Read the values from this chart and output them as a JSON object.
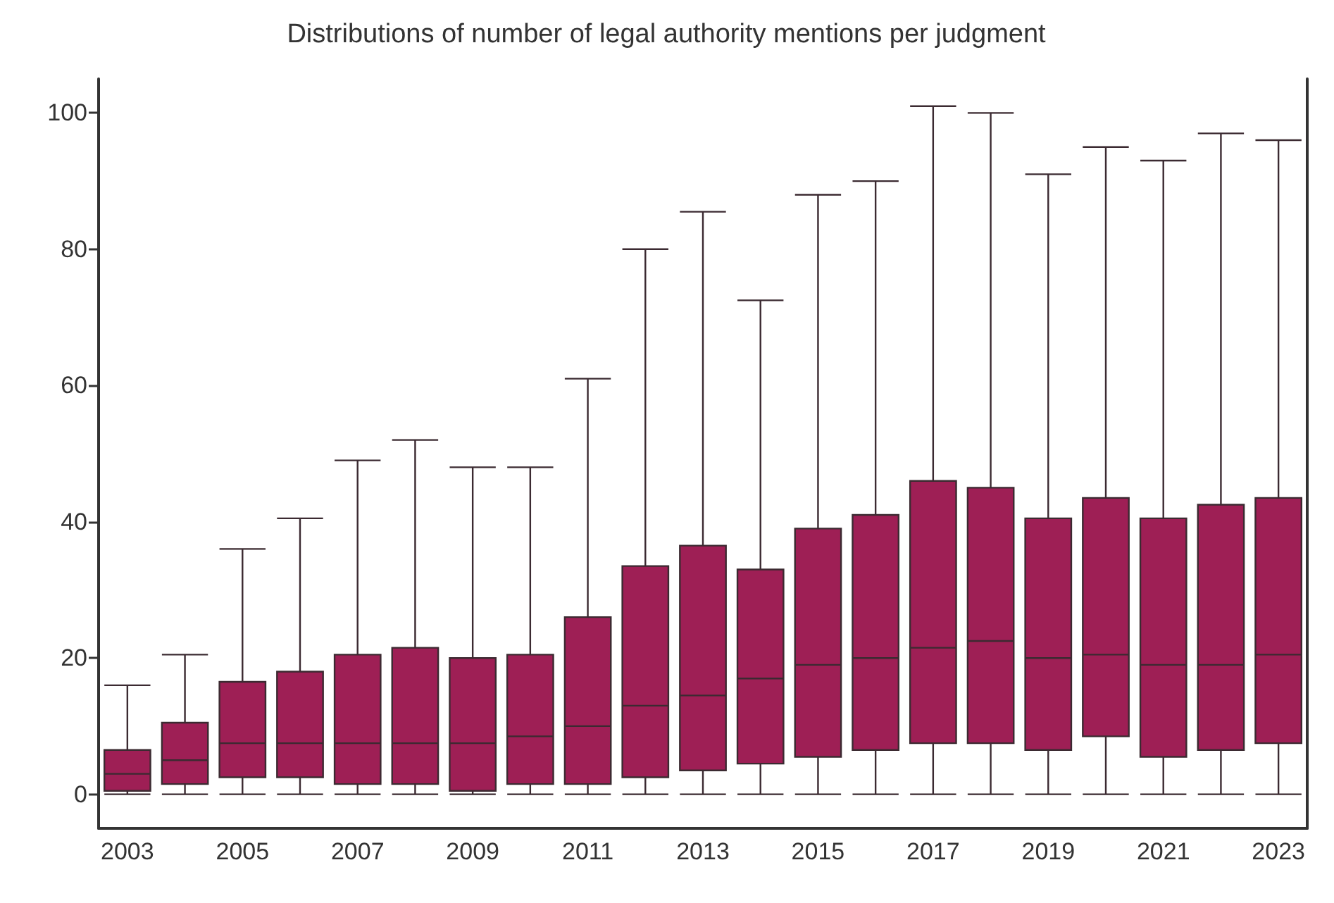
{
  "chart_data": {
    "type": "box",
    "title": "Distributions of number of legal authority mentions per judgment",
    "categories": [
      "2003",
      null,
      "2005",
      null,
      "2007",
      null,
      "2009",
      null,
      "2011",
      null,
      "2013",
      null,
      "2015",
      null,
      "2017",
      null,
      "2019",
      null,
      "2021",
      null,
      "2023"
    ],
    "color": "#9e1f55",
    "boxes": [
      {
        "low": 0,
        "q1": 0.5,
        "median": 3,
        "q3": 6.5,
        "high": 16
      },
      {
        "low": 0,
        "q1": 1.5,
        "median": 5,
        "q3": 10.5,
        "high": 20.5
      },
      {
        "low": 0,
        "q1": 2.5,
        "median": 7.5,
        "q3": 16.5,
        "high": 36
      },
      {
        "low": 0,
        "q1": 2.5,
        "median": 7.5,
        "q3": 18,
        "high": 40.5
      },
      {
        "low": 0,
        "q1": 1.5,
        "median": 7.5,
        "q3": 20.5,
        "high": 49
      },
      {
        "low": 0,
        "q1": 1.5,
        "median": 7.5,
        "q3": 21.5,
        "high": 52
      },
      {
        "low": 0,
        "q1": 0.5,
        "median": 7.5,
        "q3": 20,
        "high": 48
      },
      {
        "low": 0,
        "q1": 1.5,
        "median": 8.5,
        "q3": 20.5,
        "high": 48
      },
      {
        "low": 0,
        "q1": 1.5,
        "median": 10,
        "q3": 26,
        "high": 61
      },
      {
        "low": 0,
        "q1": 2.5,
        "median": 13,
        "q3": 33.5,
        "high": 80
      },
      {
        "low": 0,
        "q1": 3.5,
        "median": 14.5,
        "q3": 36.5,
        "high": 85.5
      },
      {
        "low": 0,
        "q1": 4.5,
        "median": 17,
        "q3": 33,
        "high": 72.5
      },
      {
        "low": 0,
        "q1": 5.5,
        "median": 19,
        "q3": 39,
        "high": 88
      },
      {
        "low": 0,
        "q1": 6.5,
        "median": 20,
        "q3": 41,
        "high": 90
      },
      {
        "low": 0,
        "q1": 7.5,
        "median": 21.5,
        "q3": 46,
        "high": 101
      },
      {
        "low": 0,
        "q1": 7.5,
        "median": 22.5,
        "q3": 45,
        "high": 100
      },
      {
        "low": 0,
        "q1": 6.5,
        "median": 20,
        "q3": 40.5,
        "high": 91
      },
      {
        "low": 0,
        "q1": 8.5,
        "median": 20.5,
        "q3": 43.5,
        "high": 95
      },
      {
        "low": 0,
        "q1": 5.5,
        "median": 19,
        "q3": 40.5,
        "high": 93
      },
      {
        "low": 0,
        "q1": 6.5,
        "median": 19,
        "q3": 42.5,
        "high": 97
      },
      {
        "low": 0,
        "q1": 7.5,
        "median": 20.5,
        "q3": 43.5,
        "high": 96
      }
    ],
    "ylim": [
      -5,
      105
    ],
    "yticks": [
      0,
      20,
      40,
      60,
      80,
      100
    ],
    "grid": false
  }
}
